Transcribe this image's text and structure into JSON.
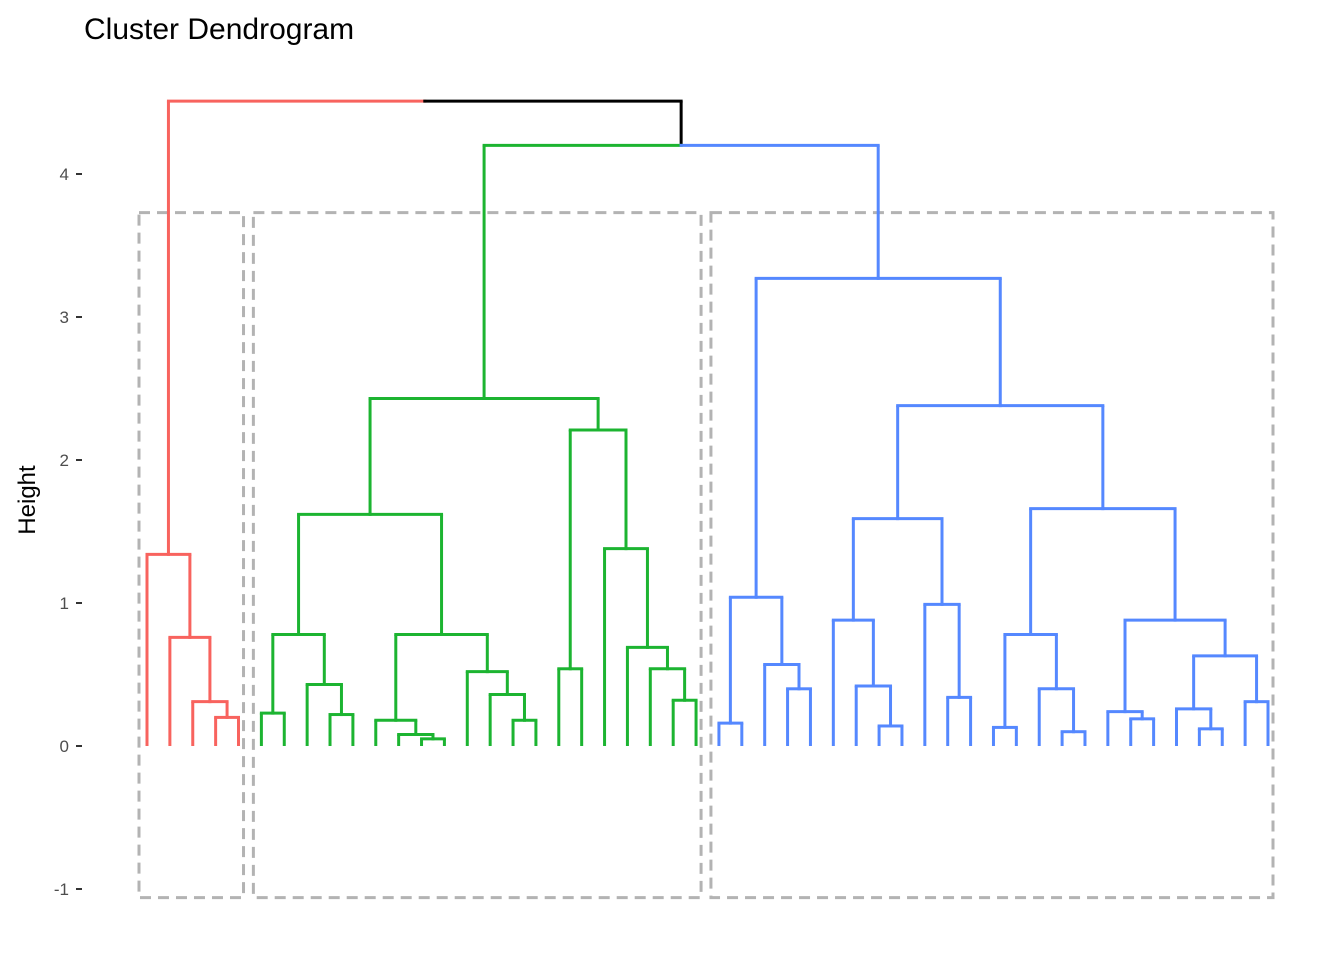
{
  "chart_data": {
    "type": "dendrogram",
    "title": "Cluster Dendrogram",
    "xlabel": "",
    "ylabel": "Height",
    "ylim": [
      -1,
      4.6
    ],
    "yticks": [
      -1,
      0,
      1,
      2,
      3,
      4
    ],
    "grid": false,
    "leaf_count": 50,
    "cluster_colors": {
      "1": "#F8635E",
      "2": "#1CB431",
      "3": "#5588FF"
    },
    "unclustered_color": "#000000",
    "cluster_box_color": "#B3B3B3",
    "cluster_boxes": {
      "ymin": -1.06,
      "ymax": 3.73
    },
    "tree": [
      4.51,
      {
        "cluster": 1,
        "node": [
          1.34,
          0,
          [
            0.76,
            0,
            [
              0.31,
              0,
              [
                0.2,
                0,
                0
              ]
            ]
          ]
        ]
      },
      [
        4.2,
        {
          "cluster": 2,
          "node": [
            2.43,
            [
              1.62,
              [
                0.78,
                [
                  0.23,
                  0,
                  0
                ],
                [
                  0.43,
                  0,
                  [
                    0.22,
                    0,
                    0
                  ]
                ]
              ],
              [
                0.78,
                [
                  0.18,
                  0,
                  [
                    0.08,
                    0,
                    [
                      0.05,
                      0,
                      0
                    ]
                  ]
                ],
                [
                  0.52,
                  0,
                  [
                    0.36,
                    0,
                    [
                      0.18,
                      0,
                      0
                    ]
                  ]
                ]
              ]
            ],
            [
              2.21,
              [
                0.54,
                0,
                0
              ],
              [
                1.38,
                0,
                [
                  0.69,
                  0,
                  [
                    0.54,
                    0,
                    [
                      0.32,
                      0,
                      0
                    ]
                  ]
                ]
              ]
            ]
          ]
        },
        {
          "cluster": 3,
          "node": [
            3.27,
            [
              1.04,
              [
                0.16,
                0,
                0
              ],
              [
                0.57,
                0,
                [
                  0.4,
                  0,
                  0
                ]
              ]
            ],
            [
              2.38,
              [
                1.59,
                [
                  0.88,
                  0,
                  [
                    0.42,
                    0,
                    [
                      0.14,
                      0,
                      0
                    ]
                  ]
                ],
                [
                  0.99,
                  0,
                  [
                    0.34,
                    0,
                    0
                  ]
                ]
              ],
              [
                1.66,
                [
                  0.78,
                  [
                    0.13,
                    0,
                    0
                  ],
                  [
                    0.4,
                    0,
                    [
                      0.1,
                      0,
                      0
                    ]
                  ]
                ],
                [
                  0.88,
                  [
                    0.24,
                    0,
                    [
                      0.19,
                      0,
                      0
                    ]
                  ],
                  [
                    0.63,
                    [
                      0.26,
                      0,
                      [
                        0.12,
                        0,
                        0
                      ]
                    ],
                    [
                      0.31,
                      0,
                      0
                    ]
                  ]
                ]
              ]
            ]
          ]
        }
      ]
    ]
  }
}
